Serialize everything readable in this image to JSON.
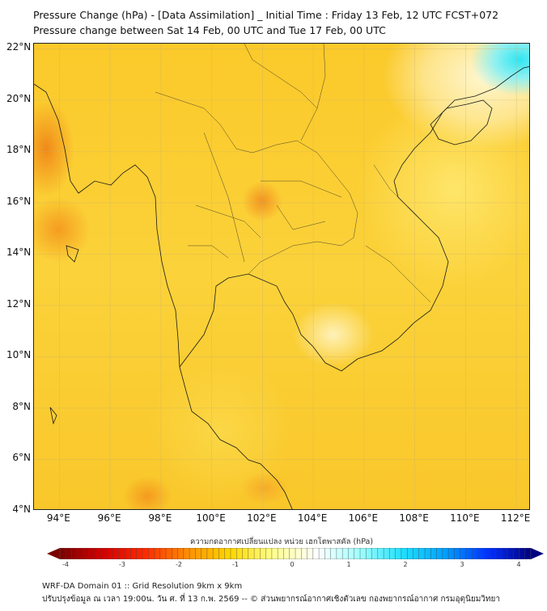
{
  "header": {
    "title": "Pressure Change (hPa) - [Data Assimilation] _ Initial Time : Friday 13 Feb, 12 UTC FCST+072",
    "subtitle": "Pressure change between Sat 14 Feb, 00 UTC and Tue 17 Feb, 00 UTC"
  },
  "map": {
    "lat_labels": [
      "22°N",
      "20°N",
      "18°N",
      "16°N",
      "14°N",
      "12°N",
      "10°N",
      "8°N",
      "6°N",
      "4°N"
    ],
    "lat_values": [
      22,
      20,
      18,
      16,
      14,
      12,
      10,
      8,
      6,
      4
    ],
    "lon_labels": [
      "94°E",
      "96°E",
      "98°E",
      "100°E",
      "102°E",
      "104°E",
      "106°E",
      "108°E",
      "110°E",
      "112°E"
    ],
    "lon_values": [
      94,
      96,
      98,
      100,
      102,
      104,
      106,
      108,
      110,
      112
    ],
    "extent": {
      "lon": [
        93.0,
        112.57
      ],
      "lat": [
        4.0,
        22.2
      ]
    }
  },
  "colorbar": {
    "title": "ความกดอากาศเปลี่ยนแปลง หน่วย เฮกโตพาสคัล (hPa)",
    "ticks": [
      "-4",
      "-3",
      "-2",
      "-1",
      "0",
      "1",
      "2",
      "3",
      "4"
    ],
    "range": [
      -4,
      4
    ],
    "colors": [
      "#7a0000",
      "#d40000",
      "#ff2a00",
      "#ff9000",
      "#ffd800",
      "#ffff90",
      "#ffffff",
      "#a0ffff",
      "#20e0ff",
      "#00a0ff",
      "#0030ff",
      "#000080"
    ]
  },
  "footer": {
    "line1": "WRF-DA Domain 01 :: Grid Resolution 9km x 9km",
    "line2": "ปรับปรุงข้อมูล ณ เวลา 19:00น. วัน ศ. ที่ 13 ก.พ. 2569 -- © ส่วนพยากรณ์อากาศเชิงตัวเลข กองพยากรณ์อากาศ กรมอุตุนิยมวิทยา"
  }
}
